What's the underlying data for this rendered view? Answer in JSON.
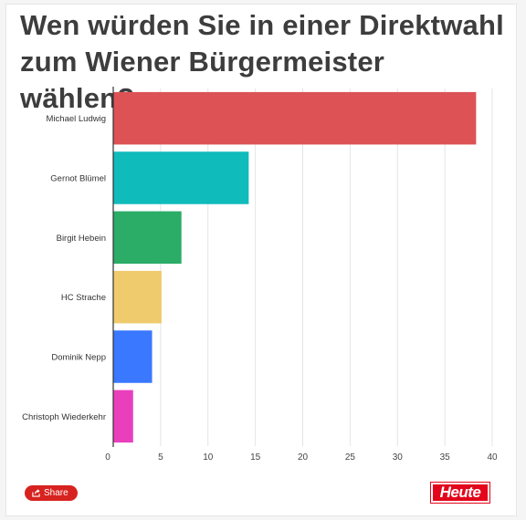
{
  "title": "Wen würden Sie in einer Direktwahl zum Wiener Bürgermeister wählen?",
  "chart_data": {
    "type": "bar",
    "orientation": "horizontal",
    "categories": [
      "Michael Ludwig",
      "Gernot Blümel",
      "Birgit Hebein",
      "HC Strache",
      "Dominik Nepp",
      "Christoph Wiederkehr"
    ],
    "values": [
      38.3,
      14.3,
      7.2,
      5.1,
      4.1,
      2.1
    ],
    "colors": [
      "#dd5255",
      "#10bbbb",
      "#2bac67",
      "#f0cb6d",
      "#3a78ff",
      "#ea3fbd"
    ],
    "xlim": [
      0,
      40
    ],
    "xticks": [
      0,
      5,
      10,
      15,
      20,
      25,
      30,
      35,
      40
    ],
    "grid": true,
    "legend": "none"
  },
  "share_label": "Share",
  "share_icon": "share-icon",
  "logo_text": "Heute"
}
